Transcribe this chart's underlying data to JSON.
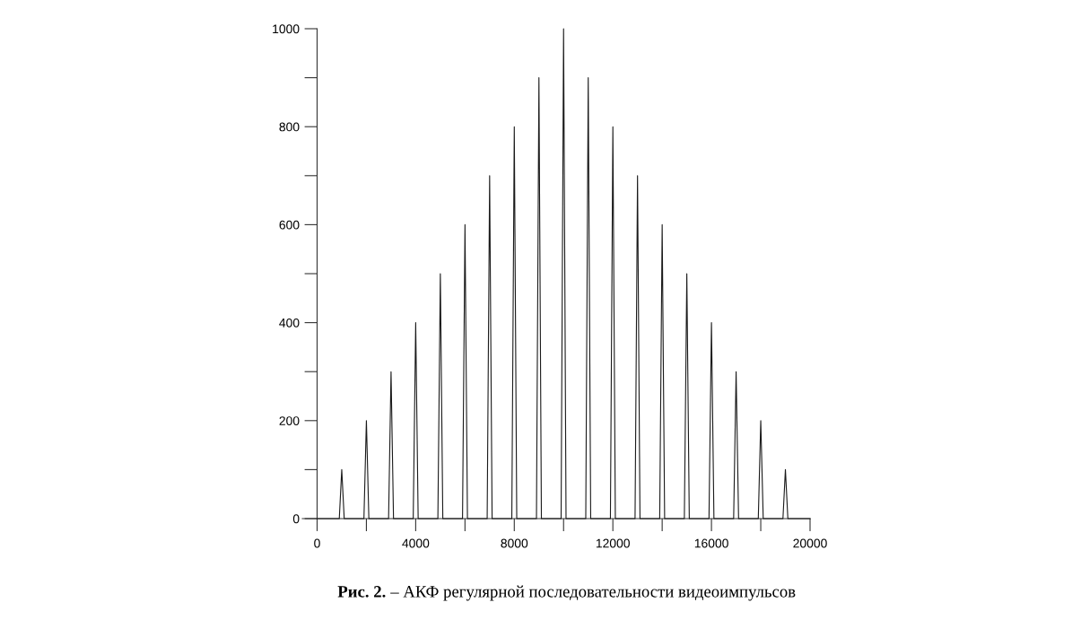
{
  "chart_data": {
    "type": "line",
    "x": [
      0,
      900,
      1000,
      1100,
      1900,
      2000,
      2100,
      2900,
      3000,
      3100,
      3900,
      4000,
      4100,
      4900,
      5000,
      5100,
      5900,
      6000,
      6100,
      6900,
      7000,
      7100,
      7900,
      8000,
      8100,
      8900,
      9000,
      9100,
      9900,
      10000,
      10100,
      10900,
      11000,
      11100,
      11900,
      12000,
      12100,
      12900,
      13000,
      13100,
      13900,
      14000,
      14100,
      14900,
      15000,
      15100,
      15900,
      16000,
      16100,
      16900,
      17000,
      17100,
      17900,
      18000,
      18100,
      18900,
      19000,
      19100,
      20000
    ],
    "series": [
      {
        "color": "#1a1a1a",
        "values": [
          0,
          0,
          100,
          0,
          0,
          200,
          0,
          0,
          300,
          0,
          0,
          400,
          0,
          0,
          500,
          0,
          0,
          600,
          0,
          0,
          700,
          0,
          0,
          800,
          0,
          0,
          900,
          0,
          0,
          1000,
          0,
          0,
          900,
          0,
          0,
          800,
          0,
          0,
          700,
          0,
          0,
          600,
          0,
          0,
          500,
          0,
          0,
          400,
          0,
          0,
          300,
          0,
          0,
          200,
          0,
          0,
          100,
          0,
          0
        ]
      }
    ],
    "xlim": [
      -600,
      20000
    ],
    "ylim": [
      0,
      1000
    ],
    "xticks": [
      0,
      {
        "value": 2000,
        "label": null
      },
      4000,
      {
        "value": 6000,
        "label": null
      },
      8000,
      {
        "value": 10000,
        "label": null
      },
      12000,
      {
        "value": 14000,
        "label": null
      },
      16000,
      {
        "value": 18000,
        "label": null
      },
      20000
    ],
    "yticks": [
      0,
      {
        "value": 100,
        "label": null
      },
      200,
      {
        "value": 300,
        "label": null
      },
      400,
      {
        "value": 500,
        "label": null
      },
      600,
      {
        "value": 700,
        "label": null
      },
      800,
      {
        "value": 900,
        "label": null
      },
      1000
    ],
    "grid": false,
    "line_style": "solid",
    "marker": "none",
    "annotations": [
      "Рис. 2.",
      "– АКФ регулярной последовательности видеоимпульсов"
    ]
  }
}
